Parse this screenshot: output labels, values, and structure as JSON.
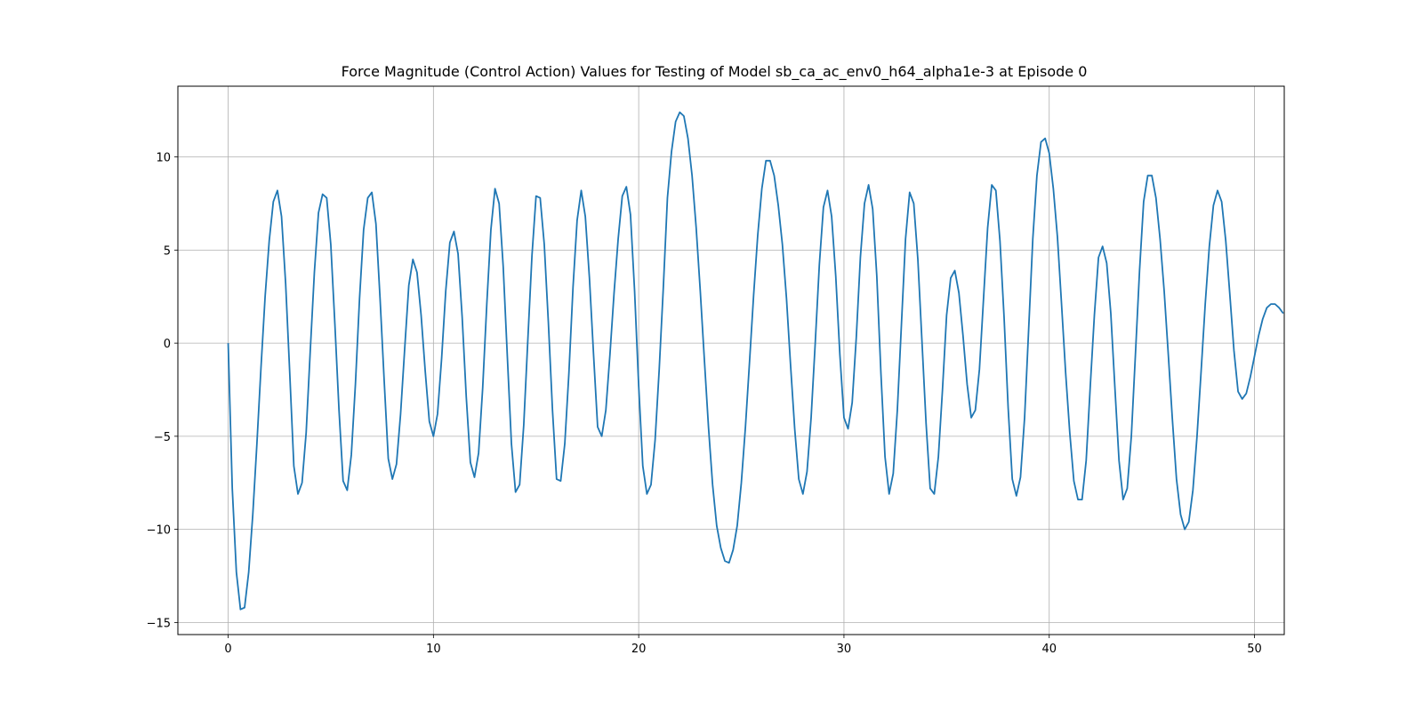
{
  "chart_data": {
    "type": "line",
    "title": "Force Magnitude (Control Action) Values for Testing of Model sb_ca_ac_env0_h64_alpha1e-3 at Episode 0",
    "xlabel": "",
    "ylabel": "",
    "xlim": [
      -2.45,
      51.45
    ],
    "ylim": [
      -15.65,
      13.8
    ],
    "xticks": [
      0,
      10,
      20,
      30,
      40,
      50
    ],
    "yticks": [
      -15,
      -10,
      -5,
      0,
      5,
      10
    ],
    "grid": true,
    "legend": "none",
    "series": [
      {
        "color": "#1f77b4",
        "points": [
          [
            0.0,
            0.0
          ],
          [
            0.2,
            -7.8
          ],
          [
            0.4,
            -12.3
          ],
          [
            0.6,
            -14.3
          ],
          [
            0.8,
            -14.2
          ],
          [
            1.0,
            -12.3
          ],
          [
            1.2,
            -9.2
          ],
          [
            1.4,
            -5.4
          ],
          [
            1.6,
            -1.3
          ],
          [
            1.8,
            2.5
          ],
          [
            2.0,
            5.5
          ],
          [
            2.2,
            7.6
          ],
          [
            2.4,
            8.2
          ],
          [
            2.6,
            6.8
          ],
          [
            2.8,
            3.2
          ],
          [
            3.0,
            -1.6
          ],
          [
            3.2,
            -6.6
          ],
          [
            3.4,
            -8.1
          ],
          [
            3.6,
            -7.5
          ],
          [
            3.8,
            -4.8
          ],
          [
            4.0,
            -0.4
          ],
          [
            4.2,
            3.8
          ],
          [
            4.4,
            7.0
          ],
          [
            4.6,
            8.0
          ],
          [
            4.8,
            7.8
          ],
          [
            5.0,
            5.3
          ],
          [
            5.2,
            1.0
          ],
          [
            5.4,
            -3.6
          ],
          [
            5.6,
            -7.4
          ],
          [
            5.8,
            -7.9
          ],
          [
            6.0,
            -6.0
          ],
          [
            6.2,
            -2.2
          ],
          [
            6.4,
            2.4
          ],
          [
            6.6,
            6.1
          ],
          [
            6.8,
            7.8
          ],
          [
            7.0,
            8.1
          ],
          [
            7.2,
            6.4
          ],
          [
            7.4,
            2.4
          ],
          [
            7.6,
            -2.0
          ],
          [
            7.8,
            -6.2
          ],
          [
            8.0,
            -7.3
          ],
          [
            8.2,
            -6.5
          ],
          [
            8.4,
            -3.8
          ],
          [
            8.6,
            -0.3
          ],
          [
            8.8,
            3.1
          ],
          [
            9.0,
            4.5
          ],
          [
            9.2,
            3.8
          ],
          [
            9.4,
            1.5
          ],
          [
            9.6,
            -1.5
          ],
          [
            9.8,
            -4.2
          ],
          [
            10.0,
            -5.0
          ],
          [
            10.2,
            -3.8
          ],
          [
            10.4,
            -0.8
          ],
          [
            10.6,
            2.8
          ],
          [
            10.8,
            5.4
          ],
          [
            11.0,
            6.0
          ],
          [
            11.2,
            4.8
          ],
          [
            11.4,
            1.4
          ],
          [
            11.6,
            -2.9
          ],
          [
            11.8,
            -6.4
          ],
          [
            12.0,
            -7.2
          ],
          [
            12.2,
            -5.9
          ],
          [
            12.4,
            -2.4
          ],
          [
            12.6,
            2.1
          ],
          [
            12.8,
            6.1
          ],
          [
            13.0,
            8.3
          ],
          [
            13.2,
            7.5
          ],
          [
            13.4,
            4.1
          ],
          [
            13.6,
            -0.7
          ],
          [
            13.8,
            -5.4
          ],
          [
            14.0,
            -8.0
          ],
          [
            14.2,
            -7.6
          ],
          [
            14.4,
            -4.4
          ],
          [
            14.6,
            0.2
          ],
          [
            14.8,
            4.7
          ],
          [
            15.0,
            7.9
          ],
          [
            15.2,
            7.8
          ],
          [
            15.4,
            5.3
          ],
          [
            15.6,
            1.1
          ],
          [
            15.8,
            -3.6
          ],
          [
            16.0,
            -7.3
          ],
          [
            16.2,
            -7.4
          ],
          [
            16.4,
            -5.4
          ],
          [
            16.6,
            -1.6
          ],
          [
            16.8,
            3.0
          ],
          [
            17.0,
            6.6
          ],
          [
            17.2,
            8.2
          ],
          [
            17.4,
            6.8
          ],
          [
            17.6,
            3.5
          ],
          [
            17.8,
            -0.6
          ],
          [
            18.0,
            -4.5
          ],
          [
            18.2,
            -5.0
          ],
          [
            18.4,
            -3.6
          ],
          [
            18.6,
            -0.6
          ],
          [
            18.8,
            2.7
          ],
          [
            19.0,
            5.6
          ],
          [
            19.2,
            7.9
          ],
          [
            19.4,
            8.4
          ],
          [
            19.6,
            6.9
          ],
          [
            19.8,
            2.8
          ],
          [
            20.0,
            -2.3
          ],
          [
            20.2,
            -6.6
          ],
          [
            20.4,
            -8.1
          ],
          [
            20.6,
            -7.6
          ],
          [
            20.8,
            -5.2
          ],
          [
            21.0,
            -1.4
          ],
          [
            21.2,
            3.0
          ],
          [
            21.4,
            7.8
          ],
          [
            21.6,
            10.3
          ],
          [
            21.8,
            11.9
          ],
          [
            22.0,
            12.4
          ],
          [
            22.2,
            12.2
          ],
          [
            22.4,
            11.0
          ],
          [
            22.6,
            9.0
          ],
          [
            22.8,
            6.2
          ],
          [
            23.0,
            2.8
          ],
          [
            23.2,
            -0.9
          ],
          [
            23.4,
            -4.5
          ],
          [
            23.6,
            -7.6
          ],
          [
            23.8,
            -9.8
          ],
          [
            24.0,
            -11.0
          ],
          [
            24.2,
            -11.7
          ],
          [
            24.4,
            -11.8
          ],
          [
            24.6,
            -11.1
          ],
          [
            24.8,
            -9.8
          ],
          [
            25.0,
            -7.5
          ],
          [
            25.2,
            -4.5
          ],
          [
            25.4,
            -1.0
          ],
          [
            25.6,
            2.6
          ],
          [
            25.8,
            5.8
          ],
          [
            26.0,
            8.3
          ],
          [
            26.2,
            9.8
          ],
          [
            26.4,
            9.8
          ],
          [
            26.6,
            9.0
          ],
          [
            26.8,
            7.4
          ],
          [
            27.0,
            5.3
          ],
          [
            27.2,
            2.4
          ],
          [
            27.4,
            -1.2
          ],
          [
            27.6,
            -4.6
          ],
          [
            27.8,
            -7.3
          ],
          [
            28.0,
            -8.1
          ],
          [
            28.2,
            -6.9
          ],
          [
            28.4,
            -4.0
          ],
          [
            28.6,
            0.0
          ],
          [
            28.8,
            4.2
          ],
          [
            29.0,
            7.3
          ],
          [
            29.2,
            8.2
          ],
          [
            29.4,
            6.8
          ],
          [
            29.6,
            3.6
          ],
          [
            29.8,
            -0.6
          ],
          [
            30.0,
            -4.0
          ],
          [
            30.2,
            -4.6
          ],
          [
            30.4,
            -3.2
          ],
          [
            30.6,
            0.3
          ],
          [
            30.8,
            4.6
          ],
          [
            31.0,
            7.5
          ],
          [
            31.2,
            8.5
          ],
          [
            31.4,
            7.2
          ],
          [
            31.6,
            3.6
          ],
          [
            31.8,
            -1.6
          ],
          [
            32.0,
            -6.1
          ],
          [
            32.2,
            -8.1
          ],
          [
            32.4,
            -7.0
          ],
          [
            32.6,
            -3.6
          ],
          [
            32.8,
            1.0
          ],
          [
            33.0,
            5.6
          ],
          [
            33.2,
            8.1
          ],
          [
            33.4,
            7.5
          ],
          [
            33.6,
            4.5
          ],
          [
            33.8,
            0.1
          ],
          [
            34.0,
            -4.3
          ],
          [
            34.2,
            -7.8
          ],
          [
            34.4,
            -8.1
          ],
          [
            34.6,
            -6.1
          ],
          [
            34.8,
            -2.5
          ],
          [
            35.0,
            1.5
          ],
          [
            35.2,
            3.5
          ],
          [
            35.4,
            3.9
          ],
          [
            35.6,
            2.7
          ],
          [
            35.8,
            0.4
          ],
          [
            36.0,
            -2.2
          ],
          [
            36.2,
            -4.0
          ],
          [
            36.4,
            -3.6
          ],
          [
            36.6,
            -1.4
          ],
          [
            36.8,
            2.4
          ],
          [
            37.0,
            6.2
          ],
          [
            37.2,
            8.5
          ],
          [
            37.4,
            8.2
          ],
          [
            37.6,
            5.5
          ],
          [
            37.8,
            1.4
          ],
          [
            38.0,
            -3.5
          ],
          [
            38.2,
            -7.3
          ],
          [
            38.4,
            -8.2
          ],
          [
            38.6,
            -7.2
          ],
          [
            38.8,
            -4.0
          ],
          [
            39.0,
            0.8
          ],
          [
            39.2,
            5.6
          ],
          [
            39.4,
            9.0
          ],
          [
            39.6,
            10.8
          ],
          [
            39.8,
            11.0
          ],
          [
            40.0,
            10.2
          ],
          [
            40.2,
            8.3
          ],
          [
            40.4,
            5.7
          ],
          [
            40.6,
            2.1
          ],
          [
            40.8,
            -1.6
          ],
          [
            41.0,
            -4.8
          ],
          [
            41.2,
            -7.4
          ],
          [
            41.4,
            -8.4
          ],
          [
            41.6,
            -8.4
          ],
          [
            41.8,
            -6.3
          ],
          [
            42.0,
            -2.3
          ],
          [
            42.2,
            1.5
          ],
          [
            42.4,
            4.6
          ],
          [
            42.6,
            5.2
          ],
          [
            42.8,
            4.3
          ],
          [
            43.0,
            1.6
          ],
          [
            43.2,
            -2.4
          ],
          [
            43.4,
            -6.3
          ],
          [
            43.6,
            -8.4
          ],
          [
            43.8,
            -7.8
          ],
          [
            44.0,
            -5.0
          ],
          [
            44.2,
            -0.6
          ],
          [
            44.4,
            3.9
          ],
          [
            44.6,
            7.6
          ],
          [
            44.8,
            9.0
          ],
          [
            45.0,
            9.0
          ],
          [
            45.2,
            7.8
          ],
          [
            45.4,
            5.6
          ],
          [
            45.6,
            2.8
          ],
          [
            45.8,
            -0.6
          ],
          [
            46.0,
            -4.1
          ],
          [
            46.2,
            -7.3
          ],
          [
            46.4,
            -9.2
          ],
          [
            46.6,
            -10.0
          ],
          [
            46.8,
            -9.6
          ],
          [
            47.0,
            -7.9
          ],
          [
            47.2,
            -5.0
          ],
          [
            47.4,
            -1.5
          ],
          [
            47.6,
            2.1
          ],
          [
            47.8,
            5.2
          ],
          [
            48.0,
            7.4
          ],
          [
            48.2,
            8.2
          ],
          [
            48.4,
            7.6
          ],
          [
            48.6,
            5.5
          ],
          [
            48.8,
            2.6
          ],
          [
            49.0,
            -0.4
          ],
          [
            49.2,
            -2.6
          ],
          [
            49.4,
            -3.0
          ],
          [
            49.6,
            -2.7
          ],
          [
            49.8,
            -1.8
          ],
          [
            50.0,
            -0.7
          ],
          [
            50.2,
            0.4
          ],
          [
            50.4,
            1.3
          ],
          [
            50.6,
            1.9
          ],
          [
            50.8,
            2.1
          ],
          [
            51.0,
            2.1
          ],
          [
            51.2,
            1.9
          ],
          [
            51.4,
            1.6
          ]
        ]
      }
    ]
  }
}
